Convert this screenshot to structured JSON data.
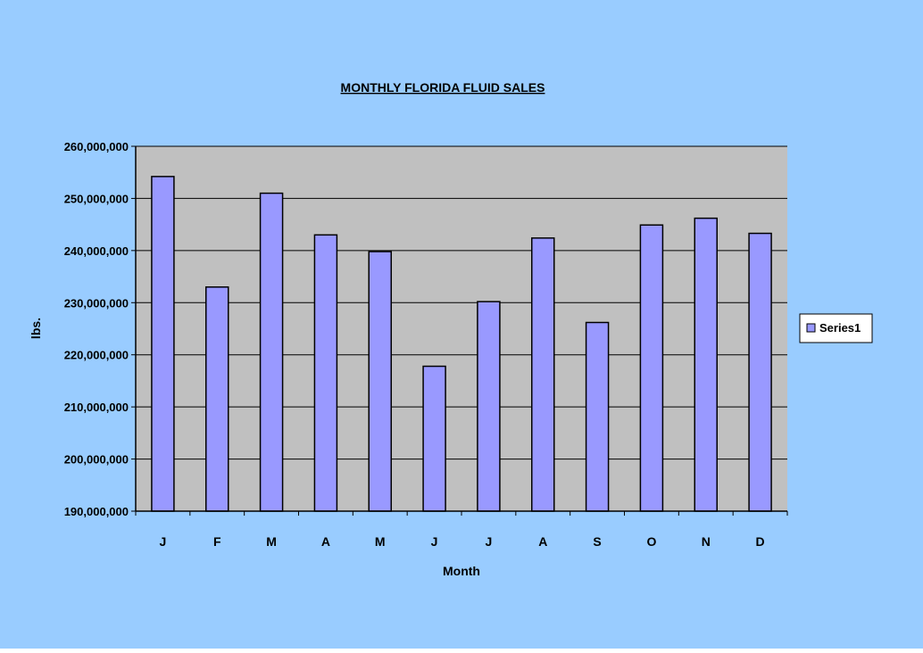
{
  "chart_data": {
    "type": "bar",
    "title": "MONTHLY FLORIDA FLUID SALES",
    "xlabel": "Month",
    "ylabel": "lbs.",
    "categories": [
      "J",
      "F",
      "M",
      "A",
      "M",
      "J",
      "J",
      "A",
      "S",
      "O",
      "N",
      "D"
    ],
    "series": [
      {
        "name": "Series1",
        "values": [
          254200000,
          233000000,
          251000000,
          243000000,
          239800000,
          217800000,
          230200000,
          242400000,
          226200000,
          244900000,
          246200000,
          243300000
        ]
      }
    ],
    "ylim": [
      190000000,
      260000000
    ],
    "yticks": [
      190000000,
      200000000,
      210000000,
      220000000,
      230000000,
      240000000,
      250000000,
      260000000
    ],
    "ytick_labels": [
      "190,000,000",
      "200,000,000",
      "210,000,000",
      "220,000,000",
      "230,000,000",
      "240,000,000",
      "250,000,000",
      "260,000,000"
    ],
    "grid": true,
    "legend": {
      "position": "right",
      "entries": [
        "Series1"
      ]
    },
    "colors": {
      "chart_area": "#99ccff",
      "plot_area": "#c0c0c0",
      "bar_fill": "#9999ff",
      "bar_stroke": "#000000",
      "text": "#000000"
    }
  }
}
